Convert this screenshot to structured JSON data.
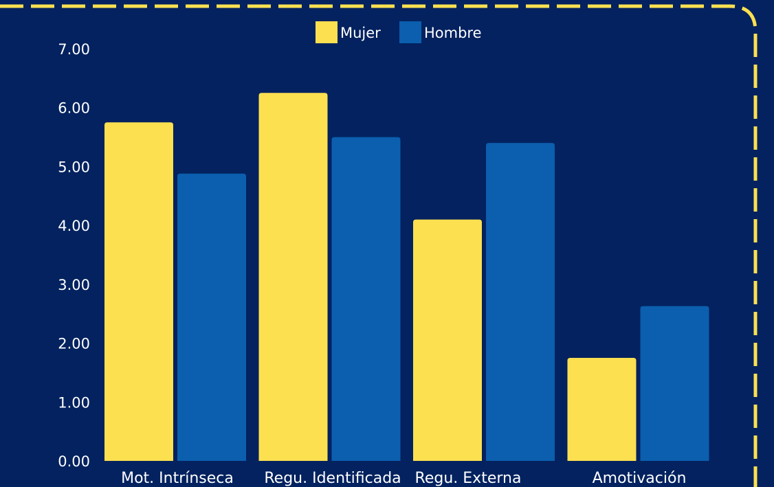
{
  "theme": {
    "background": "#03225f",
    "border_color": "#fde050"
  },
  "chart_data": {
    "type": "bar",
    "categories": [
      "Mot. Intrínseca",
      "Regu. Identificada",
      "Regu. Externa",
      "Amotivación"
    ],
    "series": [
      {
        "name": "Mujer",
        "color": "#fde050",
        "values": [
          5.75,
          6.25,
          4.1,
          1.75
        ]
      },
      {
        "name": "Hombre",
        "color": "#0b5fae",
        "values": [
          4.88,
          5.5,
          5.4,
          2.63
        ]
      }
    ],
    "yticks": [
      "0.00",
      "1.00",
      "2.00",
      "3.00",
      "4.00",
      "5.00",
      "6.00",
      "7.00"
    ],
    "ylim": [
      0,
      7
    ],
    "title": "",
    "xlabel": "",
    "ylabel": "",
    "legend_position": "top-center",
    "grid": false
  }
}
